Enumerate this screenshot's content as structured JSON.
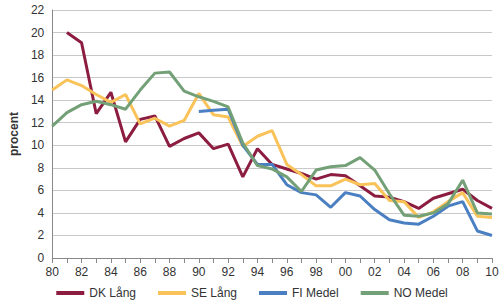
{
  "chart_data": {
    "type": "line",
    "y_label": "procent",
    "categories": [
      "80",
      null,
      "82",
      null,
      "84",
      null,
      "86",
      null,
      "88",
      null,
      "90",
      null,
      "92",
      null,
      "94",
      null,
      "96",
      null,
      "98",
      null,
      "00",
      null,
      "02",
      null,
      "04",
      null,
      "06",
      null,
      "08",
      null,
      "10"
    ],
    "series": [
      {
        "name": "DK Lång",
        "color": "#8c1d40",
        "values": [
          null,
          20.0,
          19.1,
          12.8,
          14.7,
          10.3,
          12.3,
          12.6,
          9.9,
          10.6,
          11.1,
          9.7,
          10.1,
          7.2,
          9.7,
          8.3,
          7.9,
          7.5,
          7.0,
          7.4,
          7.3,
          6.4,
          5.5,
          5.4,
          5.0,
          4.4,
          5.3,
          5.7,
          6.1,
          5.1,
          4.4
        ]
      },
      {
        "name": "SE Lång",
        "color": "#f9c35a",
        "values": [
          14.9,
          15.8,
          15.3,
          14.5,
          13.8,
          14.5,
          11.9,
          12.4,
          11.7,
          12.2,
          14.6,
          12.7,
          12.5,
          9.9,
          10.8,
          11.3,
          8.3,
          7.4,
          6.4,
          6.4,
          7.0,
          6.5,
          6.6,
          5.1,
          5.0,
          3.6,
          4.1,
          5.0,
          5.8,
          3.7,
          3.6
        ]
      },
      {
        "name": "FI Medel",
        "color": "#4a7fc1",
        "values": [
          null,
          null,
          null,
          null,
          null,
          null,
          null,
          null,
          null,
          null,
          13.0,
          13.1,
          13.2,
          10.0,
          8.3,
          8.3,
          6.5,
          5.8,
          5.6,
          4.5,
          5.8,
          5.5,
          4.3,
          3.4,
          3.1,
          3.0,
          3.7,
          4.6,
          5.0,
          2.4,
          2.0
        ]
      },
      {
        "name": "NO Medel",
        "color": "#74a077",
        "values": [
          11.7,
          12.9,
          13.6,
          13.9,
          13.6,
          13.2,
          14.9,
          16.4,
          16.5,
          14.8,
          14.3,
          13.9,
          13.4,
          10.2,
          8.2,
          7.9,
          7.2,
          5.9,
          7.8,
          8.1,
          8.2,
          8.9,
          7.8,
          5.7,
          3.8,
          3.7,
          4.0,
          4.8,
          6.9,
          4.0,
          3.9
        ]
      }
    ],
    "ylim": [
      0,
      22
    ],
    "yticks": [
      0,
      2,
      4,
      6,
      8,
      10,
      12,
      14,
      16,
      18,
      20,
      22
    ],
    "grid": true,
    "legend": "bottom"
  }
}
